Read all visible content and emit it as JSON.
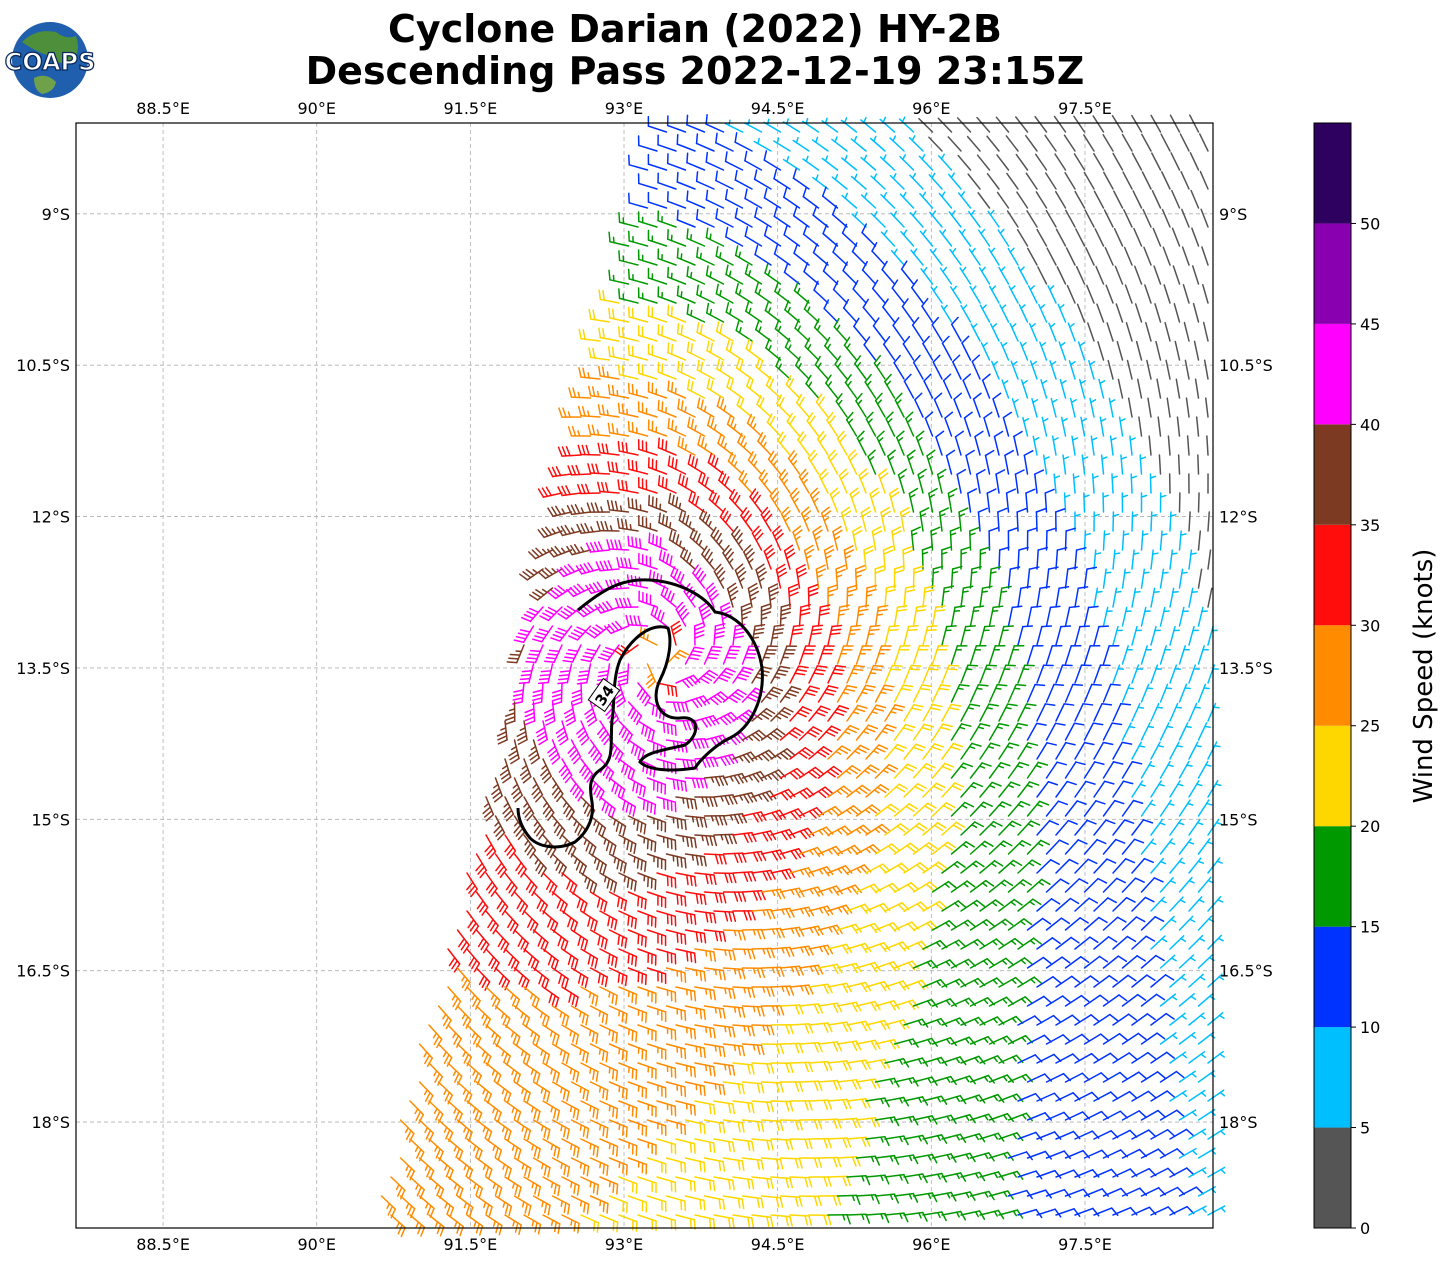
{
  "title": {
    "line1": "Cyclone Darian (2022) HY-2B",
    "line2": "Descending Pass 2022-12-19 23:15Z"
  },
  "logo": {
    "text": "COAPS"
  },
  "map": {
    "lon_range": [
      87.65,
      98.75
    ],
    "lat_range": [
      -19.05,
      -8.1
    ],
    "lon_ticks": [
      88.5,
      90,
      91.5,
      93,
      94.5,
      96,
      97.5
    ],
    "lon_tick_labels": [
      "88.5°E",
      "90°E",
      "91.5°E",
      "93°E",
      "94.5°E",
      "96°E",
      "97.5°E"
    ],
    "lat_ticks": [
      -9,
      -10.5,
      -12,
      -13.5,
      -15,
      -16.5,
      -18
    ],
    "lat_tick_labels": [
      "9°S",
      "10.5°S",
      "12°S",
      "13.5°S",
      "15°S",
      "16.5°S",
      "18°S"
    ],
    "gridlines": true,
    "cyclone_center": {
      "lon": 93.3,
      "lat": -13.4
    },
    "contour": {
      "label": "34",
      "color": "#000000"
    }
  },
  "colorbar": {
    "label": "Wind Speed (knots)",
    "bounds": [
      0,
      5,
      10,
      15,
      20,
      25,
      30,
      35,
      40,
      45,
      50,
      55
    ],
    "tick_labels": [
      "0",
      "5",
      "10",
      "15",
      "20",
      "25",
      "30",
      "35",
      "40",
      "45",
      "50"
    ],
    "colors": [
      "#555555",
      "#00bfff",
      "#0033ff",
      "#009900",
      "#ffd700",
      "#ff8c00",
      "#ff0d0d",
      "#7d3a22",
      "#ff00ff",
      "#8800b0",
      "#2e0060"
    ]
  }
}
